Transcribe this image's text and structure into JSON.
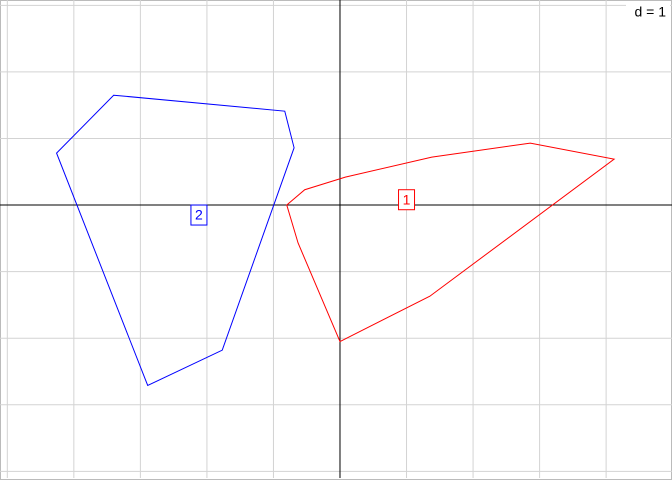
{
  "chart_data": {
    "type": "polygon",
    "annotation": "d = 1",
    "xlim": [
      -5.11,
      4.99
    ],
    "ylim": [
      -4.1,
      3.08
    ],
    "xticks": [
      -5,
      -4,
      -3,
      -2,
      -1,
      0,
      1,
      2,
      3,
      4
    ],
    "yticks": [
      -4,
      -3,
      -2,
      -1,
      0,
      1,
      2,
      3
    ],
    "grid": true,
    "series": [
      {
        "name": "1",
        "color": "#ff0000",
        "x": [
          -0.8,
          -0.53,
          0.08,
          1.38,
          2.86,
          4.12,
          1.35,
          0,
          -0.63
        ],
        "y": [
          0,
          0.23,
          0.42,
          0.72,
          0.93,
          0.69,
          -1.37,
          -2.05,
          -0.57
        ],
        "label_x": 1.0,
        "label_y": 0.08
      },
      {
        "name": "2",
        "color": "#0000ff",
        "x": [
          -3.4,
          -0.83,
          -0.69,
          -1.77,
          -2.89,
          -4.26
        ],
        "y": [
          1.65,
          1.41,
          0.86,
          -2.18,
          -2.71,
          0.78
        ],
        "label_x": -2.12,
        "label_y": -0.15
      }
    ]
  }
}
